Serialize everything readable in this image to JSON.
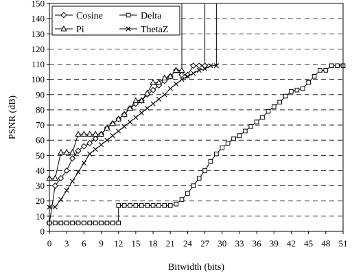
{
  "chart_data": {
    "type": "line",
    "title": "",
    "xlabel": "Bitwidth (bits)",
    "ylabel": "PSNR (dB)",
    "xlim": [
      0,
      51
    ],
    "ylim": [
      0,
      150
    ],
    "xticks": [
      0,
      3,
      6,
      9,
      12,
      15,
      18,
      21,
      24,
      27,
      30,
      33,
      36,
      39,
      42,
      45,
      48,
      51
    ],
    "yticks": [
      0,
      10,
      20,
      30,
      40,
      50,
      60,
      70,
      80,
      90,
      100,
      110,
      120,
      130,
      140,
      150
    ],
    "grid": "horizontal-dashed",
    "legend_position": "top-left",
    "series": [
      {
        "name": "Cosine",
        "marker": "diamond",
        "points": [
          [
            0,
            5.5
          ],
          [
            1,
            30
          ],
          [
            2,
            35
          ],
          [
            3,
            40
          ],
          [
            4,
            48
          ],
          [
            5,
            53
          ],
          [
            6,
            56
          ],
          [
            7,
            58
          ],
          [
            8,
            61
          ],
          [
            9,
            64
          ],
          [
            10,
            68
          ],
          [
            11,
            71
          ],
          [
            12,
            74
          ],
          [
            13,
            77
          ],
          [
            14,
            81
          ],
          [
            15,
            84
          ],
          [
            16,
            86
          ],
          [
            17,
            90
          ],
          [
            18,
            93
          ],
          [
            19,
            96
          ],
          [
            20,
            99
          ],
          [
            21,
            102
          ],
          [
            22,
            106
          ],
          [
            23,
            103
          ],
          [
            24,
            103
          ],
          [
            25,
            109
          ],
          [
            26,
            109
          ],
          [
            27,
            109
          ],
          [
            27,
            150
          ]
        ]
      },
      {
        "name": "Delta",
        "marker": "square",
        "points": [
          [
            0,
            5.5
          ],
          [
            1,
            5.5
          ],
          [
            2,
            5.5
          ],
          [
            3,
            5.5
          ],
          [
            4,
            5.5
          ],
          [
            5,
            5.5
          ],
          [
            6,
            5.5
          ],
          [
            7,
            5.5
          ],
          [
            8,
            5.5
          ],
          [
            9,
            5.5
          ],
          [
            10,
            5.5
          ],
          [
            11,
            5.5
          ],
          [
            12,
            5.5
          ],
          [
            12,
            17
          ],
          [
            13,
            17
          ],
          [
            14,
            17
          ],
          [
            15,
            17
          ],
          [
            16,
            17
          ],
          [
            17,
            17
          ],
          [
            18,
            17
          ],
          [
            19,
            17
          ],
          [
            20,
            17
          ],
          [
            21,
            17
          ],
          [
            22,
            18
          ],
          [
            23,
            21
          ],
          [
            24,
            25
          ],
          [
            25,
            30
          ],
          [
            26,
            35
          ],
          [
            27,
            40
          ],
          [
            28,
            46
          ],
          [
            29,
            51
          ],
          [
            30,
            55
          ],
          [
            31,
            58
          ],
          [
            32,
            61
          ],
          [
            33,
            63
          ],
          [
            34,
            66
          ],
          [
            35,
            69
          ],
          [
            36,
            72
          ],
          [
            37,
            75
          ],
          [
            38,
            79
          ],
          [
            39,
            82
          ],
          [
            40,
            85
          ],
          [
            41,
            89
          ],
          [
            42,
            92
          ],
          [
            43,
            93
          ],
          [
            44,
            94
          ],
          [
            45,
            98
          ],
          [
            46,
            102
          ],
          [
            47,
            106
          ],
          [
            48,
            106
          ],
          [
            49,
            109
          ],
          [
            50,
            109
          ],
          [
            51,
            109
          ],
          [
            51,
            150
          ]
        ]
      },
      {
        "name": "Pi",
        "marker": "triangle",
        "points": [
          [
            0,
            35
          ],
          [
            1,
            35
          ],
          [
            2,
            52
          ],
          [
            3,
            52
          ],
          [
            4,
            52
          ],
          [
            5,
            64
          ],
          [
            6,
            64
          ],
          [
            7,
            64
          ],
          [
            8,
            64
          ],
          [
            9,
            64
          ],
          [
            10,
            68
          ],
          [
            11,
            71
          ],
          [
            12,
            74
          ],
          [
            13,
            77
          ],
          [
            14,
            81
          ],
          [
            15,
            86
          ],
          [
            16,
            86
          ],
          [
            17,
            91
          ],
          [
            18,
            98
          ],
          [
            19,
            98
          ],
          [
            20,
            101
          ],
          [
            21,
            102
          ],
          [
            22,
            106
          ],
          [
            23,
            106
          ],
          [
            23,
            150
          ]
        ]
      },
      {
        "name": "ThetaZ",
        "marker": "x",
        "points": [
          [
            0,
            16
          ],
          [
            1,
            16
          ],
          [
            2,
            21
          ],
          [
            3,
            27
          ],
          [
            4,
            33
          ],
          [
            5,
            39
          ],
          [
            6,
            45
          ],
          [
            7,
            51
          ],
          [
            8,
            54
          ],
          [
            9,
            57
          ],
          [
            10,
            60
          ],
          [
            11,
            63
          ],
          [
            12,
            66
          ],
          [
            13,
            69
          ],
          [
            14,
            72
          ],
          [
            15,
            75
          ],
          [
            16,
            78
          ],
          [
            17,
            81
          ],
          [
            18,
            84
          ],
          [
            19,
            87
          ],
          [
            20,
            90
          ],
          [
            21,
            94
          ],
          [
            22,
            97
          ],
          [
            23,
            100
          ],
          [
            24,
            102
          ],
          [
            25,
            104
          ],
          [
            26,
            106
          ],
          [
            27,
            107
          ],
          [
            28,
            109
          ],
          [
            29,
            109
          ],
          [
            29,
            150
          ]
        ]
      }
    ]
  }
}
